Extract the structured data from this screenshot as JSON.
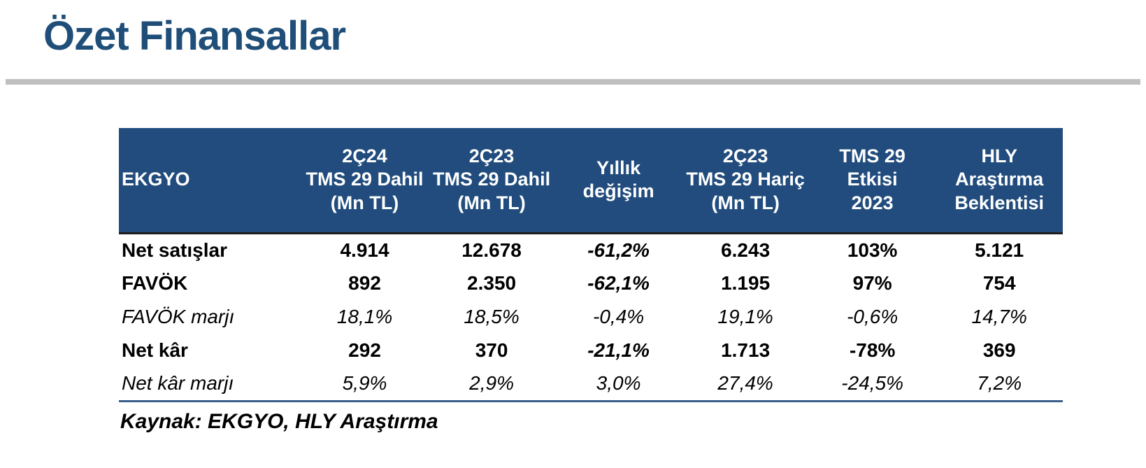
{
  "page": {
    "title": "Özet Finansallar"
  },
  "colors": {
    "title": "#1F4E79",
    "header_bg": "#214C7D",
    "header_text": "#FFFFFF",
    "divider": "#BFBFBF",
    "header_edge": "#1F1F1F",
    "bottom_rule": "#3A5F8A",
    "text": "#000000"
  },
  "table": {
    "corner_label": "EKGYO",
    "columns": [
      "2Ç24\nTMS 29 Dahil\n(Mn TL)",
      "2Ç23\nTMS 29 Dahil\n(Mn TL)",
      "Yıllık\ndeğişim",
      "2Ç23\nTMS 29 Hariç\n(Mn TL)",
      "TMS 29 Etkisi\n2023",
      "HLY\nAraştırma\nBeklentisi"
    ],
    "rows": [
      {
        "label": "Net satışlar",
        "style": "bold",
        "values": [
          "4.914",
          "12.678",
          "-61,2%",
          "6.243",
          "103%",
          "5.121"
        ]
      },
      {
        "label": "FAVÖK",
        "style": "bold",
        "values": [
          "892",
          "2.350",
          "-62,1%",
          "1.195",
          "97%",
          "754"
        ]
      },
      {
        "label": "FAVÖK marjı",
        "style": "italic",
        "values": [
          "18,1%",
          "18,5%",
          "-0,4%",
          "19,1%",
          "-0,6%",
          "14,7%"
        ]
      },
      {
        "label": "Net kâr",
        "style": "bold",
        "values": [
          "292",
          "370",
          "-21,1%",
          "1.713",
          "-78%",
          "369"
        ]
      },
      {
        "label": "Net kâr marjı",
        "style": "italic",
        "values": [
          "5,9%",
          "2,9%",
          "3,0%",
          "27,4%",
          "-24,5%",
          "7,2%"
        ]
      }
    ]
  },
  "source_note": "Kaynak: EKGYO, HLY Araştırma"
}
